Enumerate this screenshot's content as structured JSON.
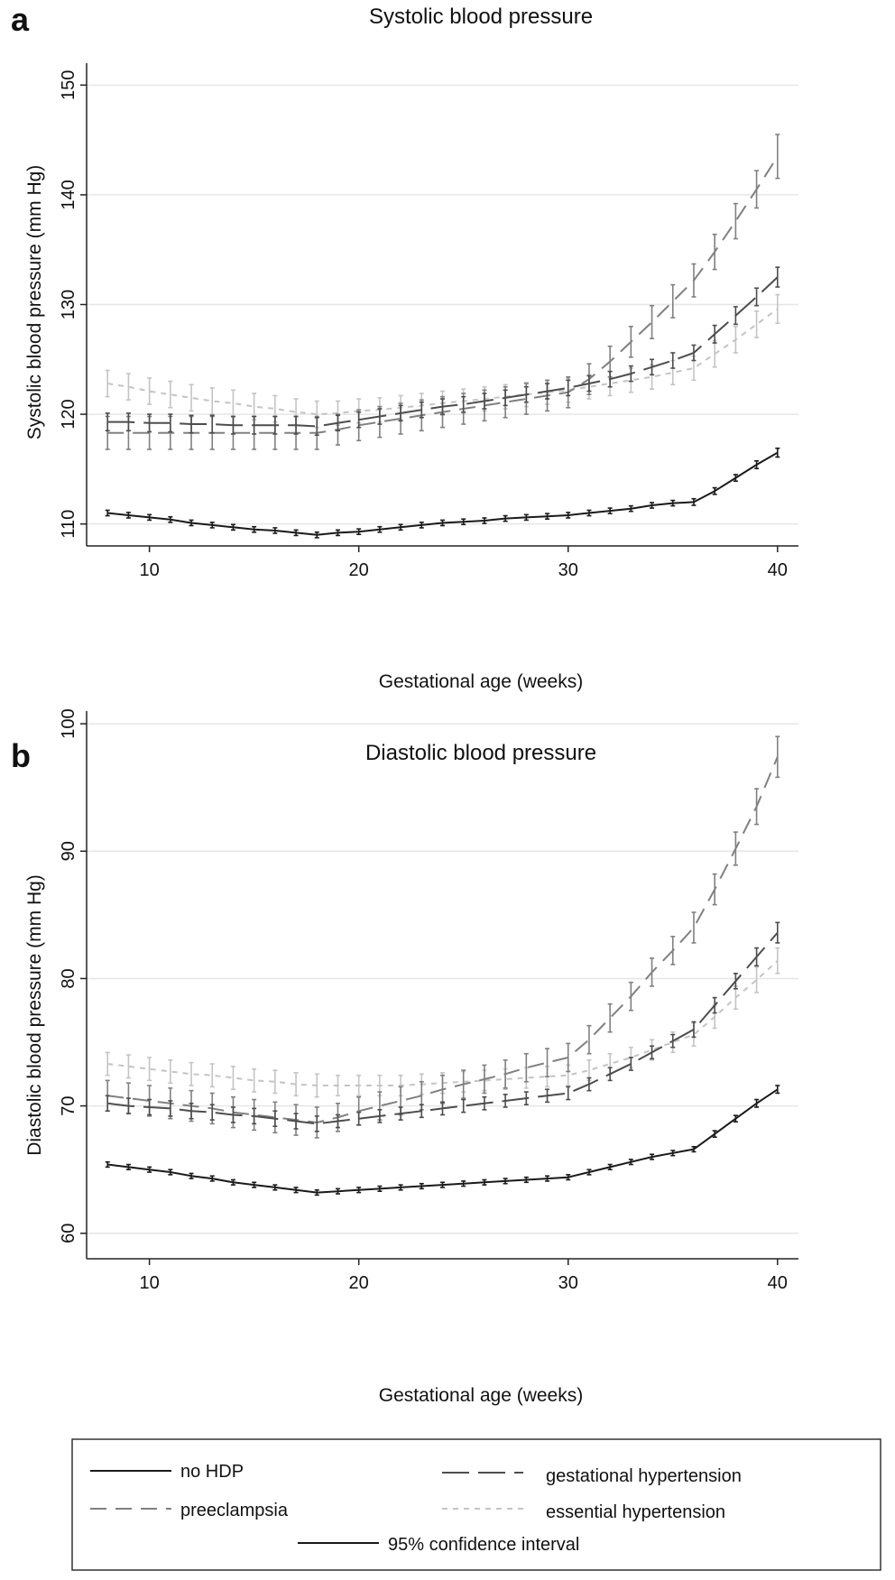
{
  "colors": {
    "no_hdp": "#1a1a1a",
    "gestational": "#4d4d4d",
    "preeclampsia": "#808080",
    "essential": "#c4c4c4",
    "grid": "#e6e6e6",
    "axis": "#222222"
  },
  "legend": {
    "items": [
      {
        "key": "no_hdp",
        "label": "no HDP"
      },
      {
        "key": "gestational",
        "label": "gestational hypertension"
      },
      {
        "key": "preeclampsia",
        "label": "preeclampsia"
      },
      {
        "key": "essential",
        "label": "essential hypertension"
      },
      {
        "key": "ci",
        "label": "95% confidence interval"
      }
    ]
  },
  "chart_data": [
    {
      "type": "line",
      "panel_letter": "a",
      "title": "Systolic blood pressure",
      "xlabel": "Gestational age (weeks)",
      "ylabel": "Systolic blood pressure (mm Hg)",
      "xlim": [
        7,
        41
      ],
      "ylim": [
        108,
        152
      ],
      "xticks": [
        10,
        20,
        30,
        40
      ],
      "yticks": [
        110,
        120,
        130,
        140,
        150
      ],
      "grid": true,
      "x": [
        8,
        9,
        10,
        11,
        12,
        13,
        14,
        15,
        16,
        17,
        18,
        19,
        20,
        21,
        22,
        23,
        24,
        25,
        26,
        27,
        28,
        29,
        30,
        31,
        32,
        33,
        34,
        35,
        36,
        37,
        38,
        39,
        40
      ],
      "series": [
        {
          "name": "no HDP",
          "key": "no_hdp",
          "values": [
            111.0,
            110.8,
            110.6,
            110.4,
            110.1,
            109.9,
            109.7,
            109.5,
            109.4,
            109.2,
            109.0,
            109.2,
            109.3,
            109.5,
            109.7,
            109.9,
            110.1,
            110.2,
            110.3,
            110.5,
            110.6,
            110.7,
            110.8,
            111.0,
            111.2,
            111.4,
            111.7,
            111.9,
            112.0,
            113.0,
            114.2,
            115.4,
            116.5
          ],
          "ci": [
            0.25,
            0.25,
            0.25,
            0.25,
            0.25,
            0.25,
            0.25,
            0.25,
            0.25,
            0.25,
            0.25,
            0.25,
            0.25,
            0.25,
            0.25,
            0.25,
            0.25,
            0.25,
            0.25,
            0.25,
            0.25,
            0.25,
            0.25,
            0.25,
            0.25,
            0.25,
            0.25,
            0.25,
            0.3,
            0.3,
            0.3,
            0.35,
            0.4
          ]
        },
        {
          "name": "gestational hypertension",
          "key": "gestational",
          "values": [
            119.3,
            119.3,
            119.2,
            119.2,
            119.1,
            119.1,
            119.0,
            119.0,
            119.0,
            119.0,
            118.9,
            119.2,
            119.5,
            119.8,
            120.1,
            120.4,
            120.7,
            120.9,
            121.2,
            121.5,
            121.8,
            122.1,
            122.4,
            122.8,
            123.2,
            123.7,
            124.3,
            124.9,
            125.6,
            127.3,
            129.0,
            130.7,
            132.5
          ],
          "ci": [
            0.8,
            0.8,
            0.8,
            0.8,
            0.8,
            0.8,
            0.8,
            0.8,
            0.8,
            0.8,
            0.8,
            0.7,
            0.7,
            0.7,
            0.7,
            0.7,
            0.7,
            0.7,
            0.7,
            0.7,
            0.7,
            0.7,
            0.7,
            0.7,
            0.7,
            0.7,
            0.7,
            0.7,
            0.7,
            0.8,
            0.8,
            0.8,
            0.9
          ]
        },
        {
          "name": "preeclampsia",
          "key": "preeclampsia",
          "values": [
            118.3,
            118.3,
            118.3,
            118.3,
            118.3,
            118.3,
            118.3,
            118.3,
            118.3,
            118.3,
            118.3,
            118.6,
            119.0,
            119.3,
            119.6,
            119.9,
            120.2,
            120.5,
            120.8,
            121.1,
            121.4,
            121.7,
            122.0,
            123.2,
            124.8,
            126.6,
            128.4,
            130.3,
            132.2,
            134.8,
            137.6,
            140.5,
            143.5
          ],
          "ci": [
            1.5,
            1.5,
            1.5,
            1.5,
            1.5,
            1.5,
            1.5,
            1.5,
            1.5,
            1.5,
            1.5,
            1.4,
            1.4,
            1.4,
            1.4,
            1.4,
            1.4,
            1.4,
            1.4,
            1.4,
            1.4,
            1.4,
            1.4,
            1.4,
            1.4,
            1.4,
            1.5,
            1.5,
            1.5,
            1.6,
            1.6,
            1.7,
            2.0
          ]
        },
        {
          "name": "essential hypertension",
          "key": "essential",
          "values": [
            122.8,
            122.5,
            122.1,
            121.8,
            121.5,
            121.2,
            121.0,
            120.7,
            120.5,
            120.2,
            120.0,
            120.1,
            120.3,
            120.4,
            120.6,
            120.8,
            121.0,
            121.2,
            121.4,
            121.6,
            121.8,
            122.0,
            122.2,
            122.5,
            122.8,
            123.1,
            123.4,
            123.8,
            124.2,
            125.5,
            126.8,
            128.2,
            129.6
          ],
          "ci": [
            1.2,
            1.2,
            1.2,
            1.2,
            1.2,
            1.2,
            1.2,
            1.2,
            1.2,
            1.2,
            1.2,
            1.1,
            1.1,
            1.1,
            1.1,
            1.1,
            1.1,
            1.1,
            1.1,
            1.1,
            1.1,
            1.1,
            1.1,
            1.1,
            1.1,
            1.1,
            1.1,
            1.1,
            1.1,
            1.2,
            1.2,
            1.2,
            1.3
          ]
        }
      ]
    },
    {
      "type": "line",
      "panel_letter": "b",
      "title": "Diastolic blood pressure",
      "xlabel": "Gestational age (weeks)",
      "ylabel": "Diastolic blood pressure (mm Hg)",
      "xlim": [
        7,
        41
      ],
      "ylim": [
        58,
        101
      ],
      "xticks": [
        10,
        20,
        30,
        40
      ],
      "yticks": [
        60,
        70,
        80,
        90,
        100
      ],
      "grid": true,
      "x": [
        8,
        9,
        10,
        11,
        12,
        13,
        14,
        15,
        16,
        17,
        18,
        19,
        20,
        21,
        22,
        23,
        24,
        25,
        26,
        27,
        28,
        29,
        30,
        31,
        32,
        33,
        34,
        35,
        36,
        37,
        38,
        39,
        40
      ],
      "series": [
        {
          "name": "no HDP",
          "key": "no_hdp",
          "values": [
            65.4,
            65.2,
            65.0,
            64.8,
            64.5,
            64.3,
            64.0,
            63.8,
            63.6,
            63.4,
            63.2,
            63.3,
            63.4,
            63.5,
            63.6,
            63.7,
            63.8,
            63.9,
            64.0,
            64.1,
            64.2,
            64.3,
            64.4,
            64.8,
            65.2,
            65.6,
            66.0,
            66.3,
            66.6,
            67.8,
            69.0,
            70.2,
            71.3
          ],
          "ci": [
            0.2,
            0.2,
            0.2,
            0.2,
            0.2,
            0.2,
            0.2,
            0.2,
            0.2,
            0.2,
            0.2,
            0.2,
            0.2,
            0.2,
            0.2,
            0.2,
            0.2,
            0.2,
            0.2,
            0.2,
            0.2,
            0.2,
            0.2,
            0.2,
            0.2,
            0.2,
            0.2,
            0.2,
            0.2,
            0.25,
            0.25,
            0.3,
            0.3
          ]
        },
        {
          "name": "gestational hypertension",
          "key": "gestational",
          "values": [
            70.2,
            70.0,
            69.9,
            69.8,
            69.6,
            69.5,
            69.3,
            69.2,
            69.0,
            68.8,
            68.6,
            68.8,
            69.0,
            69.2,
            69.4,
            69.6,
            69.8,
            70.0,
            70.2,
            70.4,
            70.6,
            70.8,
            71.0,
            71.7,
            72.5,
            73.3,
            74.2,
            75.1,
            76.0,
            77.9,
            79.8,
            81.7,
            83.6
          ],
          "ci": [
            0.6,
            0.6,
            0.6,
            0.6,
            0.6,
            0.6,
            0.6,
            0.6,
            0.6,
            0.6,
            0.6,
            0.5,
            0.5,
            0.5,
            0.5,
            0.5,
            0.5,
            0.5,
            0.5,
            0.5,
            0.5,
            0.5,
            0.5,
            0.5,
            0.5,
            0.5,
            0.5,
            0.5,
            0.6,
            0.6,
            0.6,
            0.7,
            0.8
          ]
        },
        {
          "name": "preeclampsia",
          "key": "preeclampsia",
          "values": [
            70.8,
            70.6,
            70.4,
            70.2,
            70.0,
            69.8,
            69.5,
            69.3,
            69.1,
            68.9,
            68.7,
            69.1,
            69.6,
            70.0,
            70.4,
            70.8,
            71.3,
            71.7,
            72.1,
            72.5,
            73.0,
            73.4,
            73.8,
            75.2,
            76.9,
            78.6,
            80.5,
            82.2,
            84.0,
            87.0,
            90.2,
            93.5,
            97.4
          ],
          "ci": [
            1.2,
            1.2,
            1.2,
            1.2,
            1.2,
            1.2,
            1.2,
            1.2,
            1.2,
            1.2,
            1.2,
            1.1,
            1.1,
            1.1,
            1.1,
            1.1,
            1.1,
            1.1,
            1.1,
            1.1,
            1.1,
            1.1,
            1.1,
            1.1,
            1.1,
            1.1,
            1.1,
            1.1,
            1.2,
            1.2,
            1.3,
            1.4,
            1.6
          ]
        },
        {
          "name": "essential hypertension",
          "key": "essential",
          "values": [
            73.3,
            73.1,
            72.9,
            72.7,
            72.5,
            72.4,
            72.2,
            72.0,
            71.9,
            71.7,
            71.6,
            71.6,
            71.6,
            71.6,
            71.6,
            71.7,
            71.8,
            71.9,
            72.0,
            72.1,
            72.2,
            72.3,
            72.4,
            72.8,
            73.3,
            73.8,
            74.4,
            75.0,
            75.6,
            77.0,
            78.5,
            79.9,
            81.4
          ],
          "ci": [
            0.9,
            0.9,
            0.9,
            0.9,
            0.9,
            0.9,
            0.9,
            0.9,
            0.9,
            0.9,
            0.9,
            0.8,
            0.8,
            0.8,
            0.8,
            0.8,
            0.8,
            0.8,
            0.8,
            0.8,
            0.8,
            0.8,
            0.8,
            0.8,
            0.8,
            0.8,
            0.8,
            0.8,
            0.9,
            0.9,
            0.9,
            1.0,
            1.0
          ]
        }
      ]
    }
  ]
}
